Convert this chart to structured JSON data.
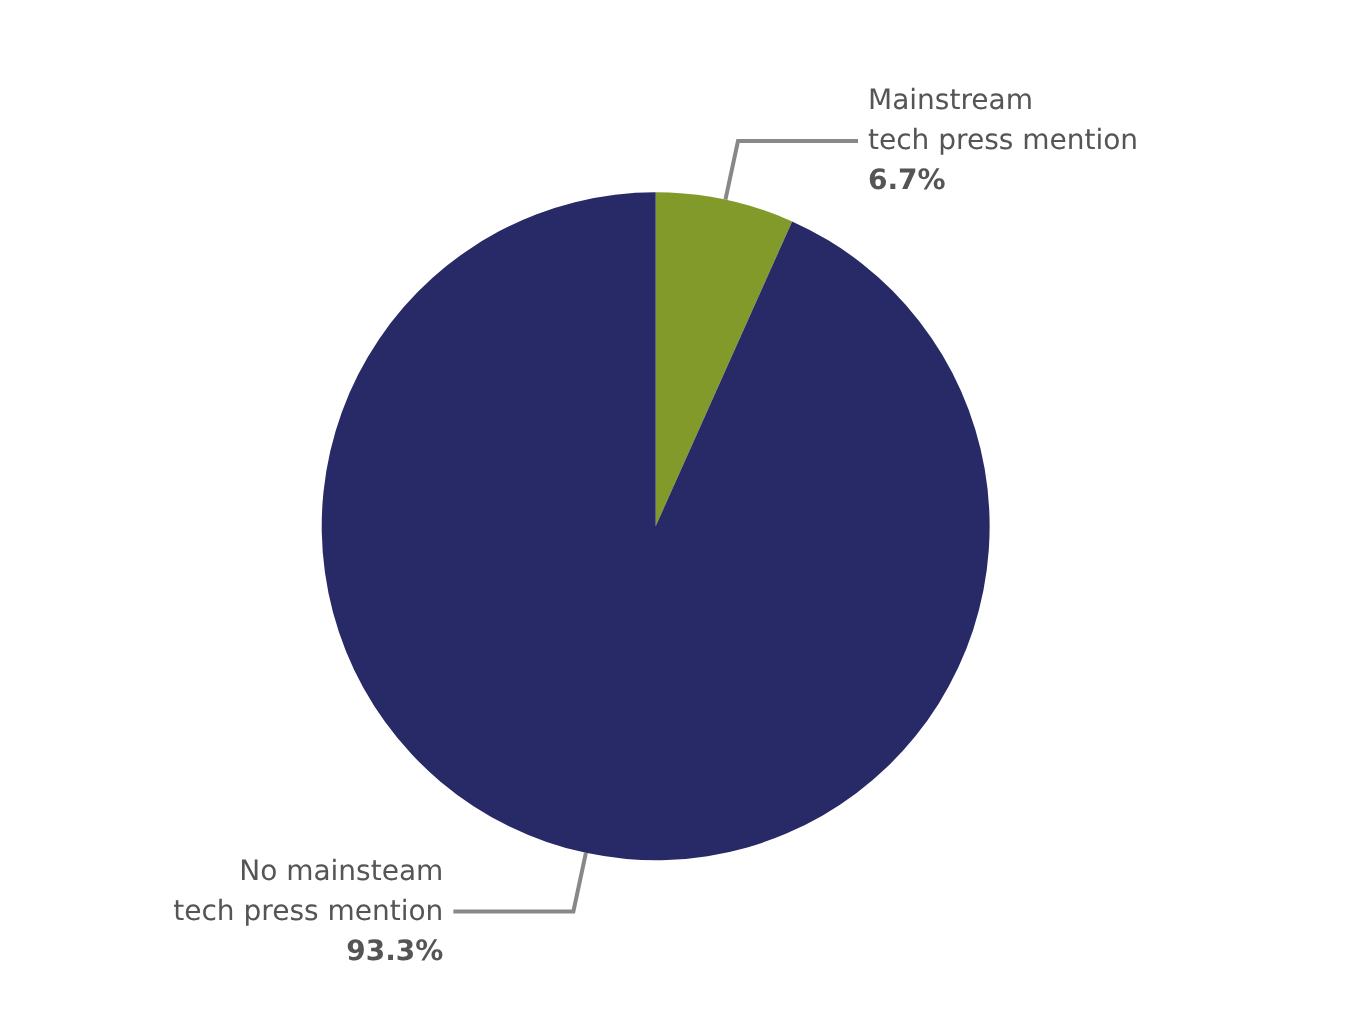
{
  "chart_data": {
    "type": "pie",
    "categories": [
      "Mainstream\ntech press mention",
      "No mainsteam\ntech press mention"
    ],
    "values": [
      6.7,
      93.3
    ],
    "colors": [
      "#829a2a",
      "#272a66"
    ],
    "value_labels": [
      "6.7%",
      "93.3%"
    ],
    "legend": false
  }
}
